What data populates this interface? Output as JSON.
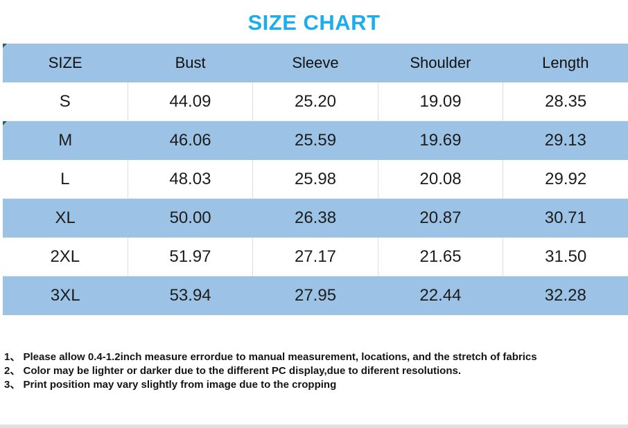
{
  "title": "SIZE CHART",
  "colors": {
    "title_text": "#1badec",
    "row_shading_blue": "#9cc3e5",
    "table_text": "#1c1c1c",
    "gridline": "#dcdcdc",
    "flag_green": "#1d6b40"
  },
  "chart_data": {
    "type": "table",
    "title": "SIZE CHART",
    "columns": [
      "SIZE",
      "Bust",
      "Sleeve",
      "Shoulder",
      "Length"
    ],
    "rows": [
      [
        "S",
        "44.09",
        "25.20",
        "19.09",
        "28.35"
      ],
      [
        "M",
        "46.06",
        "25.59",
        "19.69",
        "29.13"
      ],
      [
        "L",
        "48.03",
        "25.98",
        "20.08",
        "29.92"
      ],
      [
        "XL",
        "50.00",
        "26.38",
        "20.87",
        "30.71"
      ],
      [
        "2XL",
        "51.97",
        "27.17",
        "21.65",
        "31.50"
      ],
      [
        "3XL",
        "53.94",
        "27.95",
        "22.44",
        "32.28"
      ]
    ],
    "layout": {
      "columns_equal_width": true,
      "shaded_rows": [
        "header",
        "M",
        "XL",
        "3XL"
      ],
      "white_rows_have_vertical_dividers": true
    }
  },
  "notes": [
    "1、 Please allow 0.4-1.2inch measure errordue to manual measurement, locations, and the stretch of fabrics",
    "2、 Color may be lighter or darker due to the different PC display,due to diferent resolutions.",
    "3、 Print position may vary slightly from image due to the cropping"
  ]
}
